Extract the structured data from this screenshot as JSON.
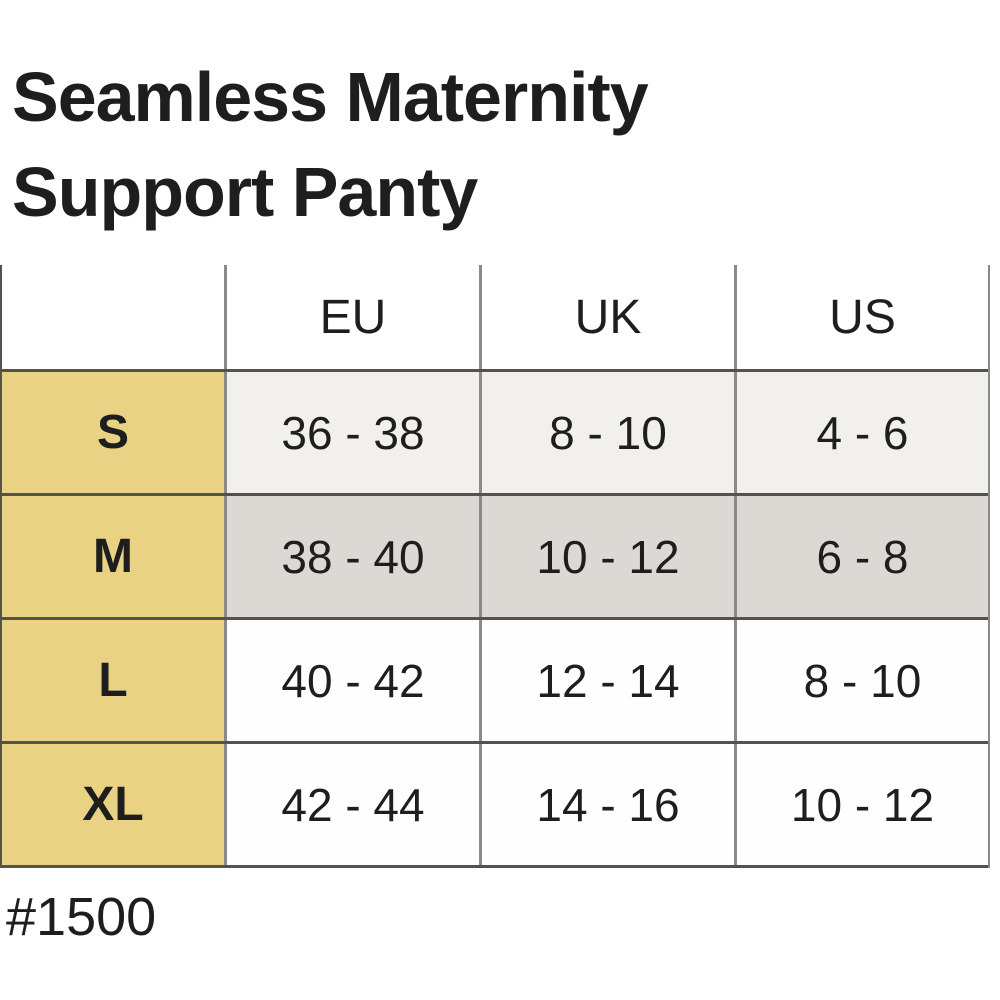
{
  "title": {
    "line1": "Seamless Maternity",
    "line2": "Support Panty"
  },
  "footer": {
    "product_code": "#1500"
  },
  "colors": {
    "accent-yellow": "#ead284",
    "row-s-bg": "#f2f0ed",
    "row-m-bg": "#dcd8d4",
    "row-white-bg": "#fefefe",
    "h-border": "#55524c",
    "v-border": "#8a8a8a",
    "text": "#1e1e1e"
  },
  "chart_data": {
    "type": "table",
    "title": "Seamless Maternity Support Panty",
    "columns": [
      "",
      "EU",
      "UK",
      "US"
    ],
    "rows": [
      [
        "S",
        "36 - 38",
        "8 - 10",
        "4 - 6"
      ],
      [
        "M",
        "38 - 40",
        "10 - 12",
        "6 - 8"
      ],
      [
        "L",
        "40 - 42",
        "12 - 14",
        "8 - 10"
      ],
      [
        "XL",
        "42 - 44",
        "14 - 16",
        "10 - 12"
      ]
    ],
    "notes": "Size chart table; size column highlighted yellow; S row light gray, M row darker gray, L and XL rows white"
  }
}
